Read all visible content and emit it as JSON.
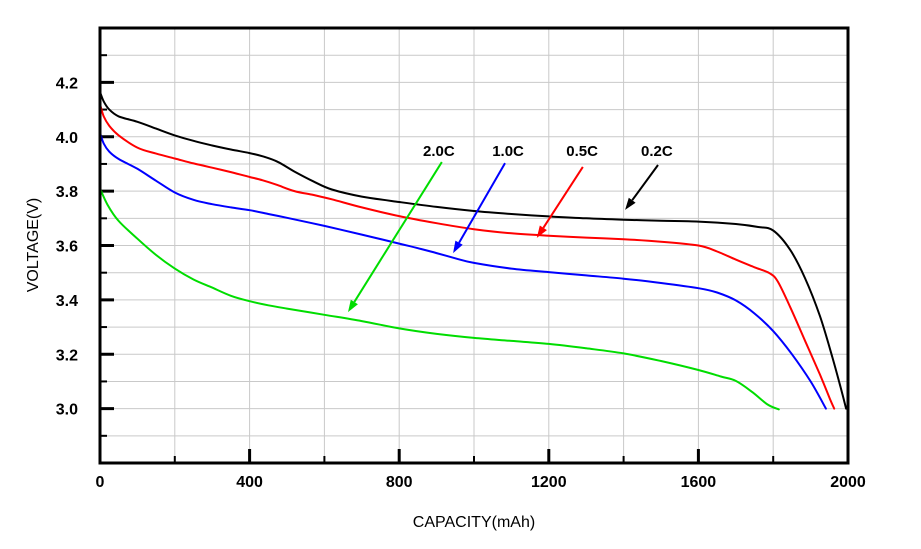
{
  "chart_data": {
    "type": "line",
    "title": "",
    "xlabel": "CAPACITY(mAh)",
    "ylabel": "VOLTAGE(V)",
    "xlim": [
      0,
      2000
    ],
    "ylim": [
      2.8,
      4.4
    ],
    "grid": {
      "show": true,
      "color": "#c9c9c9",
      "x_step": 200,
      "y_step": 0.1
    },
    "frame_color": "#000000",
    "x_major_ticks": [
      [
        0,
        "0"
      ],
      [
        400,
        "400"
      ],
      [
        800,
        "800"
      ],
      [
        1200,
        "1200"
      ],
      [
        1600,
        "1600"
      ],
      [
        2000,
        "2000"
      ]
    ],
    "x_minor_ticks": [
      200,
      600,
      1000,
      1400,
      1800
    ],
    "y_major_ticks": [
      [
        3.0,
        "3.0"
      ],
      [
        3.2,
        "3.2"
      ],
      [
        3.4,
        "3.4"
      ],
      [
        3.6,
        "3.6"
      ],
      [
        3.8,
        "3.8"
      ],
      [
        4.0,
        "4.0"
      ],
      [
        4.2,
        "4.2"
      ]
    ],
    "y_minor_ticks": [
      2.9,
      3.1,
      3.3,
      3.5,
      3.7,
      3.9,
      4.1,
      4.3
    ],
    "series": [
      {
        "name": "2.0C",
        "color": "#00dd00",
        "points": [
          [
            0,
            3.81
          ],
          [
            20,
            3.75
          ],
          [
            50,
            3.69
          ],
          [
            100,
            3.625
          ],
          [
            150,
            3.565
          ],
          [
            200,
            3.515
          ],
          [
            250,
            3.475
          ],
          [
            300,
            3.445
          ],
          [
            350,
            3.415
          ],
          [
            400,
            3.395
          ],
          [
            450,
            3.38
          ],
          [
            500,
            3.368
          ],
          [
            600,
            3.345
          ],
          [
            700,
            3.322
          ],
          [
            800,
            3.295
          ],
          [
            900,
            3.275
          ],
          [
            1000,
            3.26
          ],
          [
            1100,
            3.249
          ],
          [
            1200,
            3.238
          ],
          [
            1300,
            3.222
          ],
          [
            1400,
            3.203
          ],
          [
            1500,
            3.175
          ],
          [
            1600,
            3.142
          ],
          [
            1660,
            3.118
          ],
          [
            1700,
            3.102
          ],
          [
            1745,
            3.06
          ],
          [
            1785,
            3.015
          ],
          [
            1815,
            2.997
          ]
        ]
      },
      {
        "name": "1.0C",
        "color": "#0000ff",
        "points": [
          [
            0,
            4.015
          ],
          [
            10,
            3.975
          ],
          [
            25,
            3.945
          ],
          [
            50,
            3.918
          ],
          [
            100,
            3.882
          ],
          [
            150,
            3.838
          ],
          [
            200,
            3.795
          ],
          [
            250,
            3.768
          ],
          [
            300,
            3.752
          ],
          [
            350,
            3.74
          ],
          [
            400,
            3.73
          ],
          [
            450,
            3.716
          ],
          [
            500,
            3.702
          ],
          [
            600,
            3.672
          ],
          [
            700,
            3.64
          ],
          [
            800,
            3.607
          ],
          [
            850,
            3.59
          ],
          [
            900,
            3.572
          ],
          [
            950,
            3.553
          ],
          [
            1000,
            3.536
          ],
          [
            1100,
            3.515
          ],
          [
            1200,
            3.502
          ],
          [
            1300,
            3.49
          ],
          [
            1400,
            3.478
          ],
          [
            1500,
            3.462
          ],
          [
            1600,
            3.443
          ],
          [
            1650,
            3.427
          ],
          [
            1700,
            3.398
          ],
          [
            1750,
            3.35
          ],
          [
            1800,
            3.285
          ],
          [
            1850,
            3.2
          ],
          [
            1900,
            3.1
          ],
          [
            1941,
            3.0
          ]
        ]
      },
      {
        "name": "0.5C",
        "color": "#ff0000",
        "points": [
          [
            0,
            4.12
          ],
          [
            10,
            4.075
          ],
          [
            25,
            4.04
          ],
          [
            50,
            4.005
          ],
          [
            100,
            3.96
          ],
          [
            150,
            3.938
          ],
          [
            200,
            3.92
          ],
          [
            250,
            3.902
          ],
          [
            300,
            3.886
          ],
          [
            350,
            3.87
          ],
          [
            400,
            3.852
          ],
          [
            435,
            3.84
          ],
          [
            475,
            3.822
          ],
          [
            520,
            3.8
          ],
          [
            570,
            3.786
          ],
          [
            620,
            3.77
          ],
          [
            700,
            3.74
          ],
          [
            800,
            3.708
          ],
          [
            900,
            3.682
          ],
          [
            1000,
            3.66
          ],
          [
            1100,
            3.645
          ],
          [
            1200,
            3.636
          ],
          [
            1300,
            3.629
          ],
          [
            1400,
            3.623
          ],
          [
            1500,
            3.614
          ],
          [
            1600,
            3.6
          ],
          [
            1650,
            3.578
          ],
          [
            1700,
            3.548
          ],
          [
            1750,
            3.52
          ],
          [
            1790,
            3.498
          ],
          [
            1812,
            3.468
          ],
          [
            1845,
            3.375
          ],
          [
            1885,
            3.25
          ],
          [
            1925,
            3.125
          ],
          [
            1952,
            3.035
          ],
          [
            1963,
            3.0
          ]
        ]
      },
      {
        "name": "0.2C",
        "color": "#000000",
        "points": [
          [
            0,
            4.165
          ],
          [
            10,
            4.13
          ],
          [
            25,
            4.1
          ],
          [
            50,
            4.075
          ],
          [
            100,
            4.055
          ],
          [
            150,
            4.03
          ],
          [
            200,
            4.005
          ],
          [
            250,
            3.985
          ],
          [
            300,
            3.968
          ],
          [
            350,
            3.953
          ],
          [
            400,
            3.94
          ],
          [
            435,
            3.928
          ],
          [
            475,
            3.908
          ],
          [
            520,
            3.872
          ],
          [
            570,
            3.836
          ],
          [
            620,
            3.806
          ],
          [
            700,
            3.78
          ],
          [
            800,
            3.76
          ],
          [
            900,
            3.742
          ],
          [
            1000,
            3.727
          ],
          [
            1100,
            3.716
          ],
          [
            1200,
            3.707
          ],
          [
            1300,
            3.7
          ],
          [
            1400,
            3.695
          ],
          [
            1500,
            3.691
          ],
          [
            1600,
            3.688
          ],
          [
            1700,
            3.679
          ],
          [
            1760,
            3.668
          ],
          [
            1800,
            3.655
          ],
          [
            1845,
            3.585
          ],
          [
            1885,
            3.48
          ],
          [
            1925,
            3.34
          ],
          [
            1958,
            3.19
          ],
          [
            1980,
            3.08
          ],
          [
            1995,
            3.0
          ]
        ]
      }
    ],
    "annotations": [
      {
        "label": "2.0C",
        "color": "#00dd00",
        "label_at": [
          906,
          3.948
        ],
        "arrow_from": [
          914,
          3.907
        ],
        "arrow_to": [
          663,
          3.355
        ]
      },
      {
        "label": "1.0C",
        "color": "#0000ff",
        "label_at": [
          1091,
          3.948
        ],
        "arrow_from": [
          1083,
          3.903
        ],
        "arrow_to": [
          944,
          3.572
        ]
      },
      {
        "label": "0.5C",
        "color": "#ff0000",
        "label_at": [
          1289,
          3.948
        ],
        "arrow_from": [
          1291,
          3.889
        ],
        "arrow_to": [
          1168,
          3.628
        ]
      },
      {
        "label": "0.2C",
        "color": "#000000",
        "label_at": [
          1489,
          3.948
        ],
        "arrow_from": [
          1492,
          3.896
        ],
        "arrow_to": [
          1404,
          3.731
        ]
      }
    ]
  }
}
